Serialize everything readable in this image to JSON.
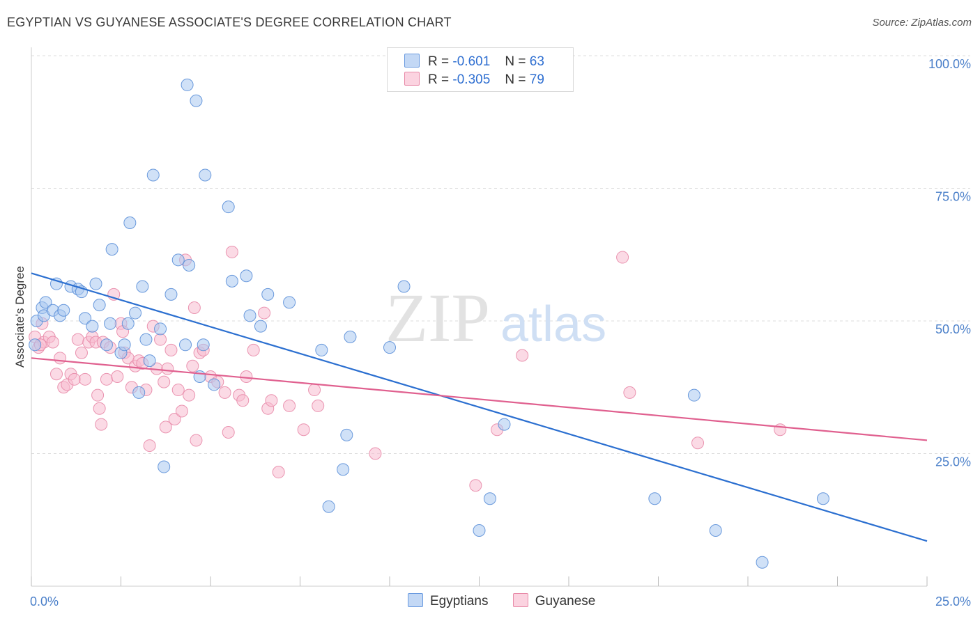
{
  "header": {
    "title": "EGYPTIAN VS GUYANESE ASSOCIATE'S DEGREE CORRELATION CHART",
    "source": "Source: ZipAtlas.com"
  },
  "watermark": {
    "zip": "ZIP",
    "atlas": "atlas"
  },
  "legend": {
    "rows": [
      {
        "r_label": "R =",
        "r_value": "-0.601",
        "n_label": "N =",
        "n_value": "63",
        "color": "#a9c8f0",
        "stroke": "#6b9be0"
      },
      {
        "r_label": "R =",
        "r_value": "-0.305",
        "n_label": "N =",
        "n_value": "79",
        "color": "#f7bcd0",
        "stroke": "#e88aa8"
      }
    ]
  },
  "bottom_legend": {
    "egyptians": "Egyptians",
    "guyanese": "Guyanese"
  },
  "chart_data": {
    "type": "scatter",
    "title": "EGYPTIAN VS GUYANESE ASSOCIATE'S DEGREE CORRELATION CHART",
    "xlabel": "",
    "ylabel": "Associate's Degree",
    "xlim": [
      0,
      25
    ],
    "ylim": [
      0,
      100
    ],
    "x_tick_labels": [
      "0.0%",
      "25.0%"
    ],
    "y_ticks": [
      25,
      50,
      75,
      100
    ],
    "y_tick_labels": [
      "25.0%",
      "50.0%",
      "75.0%",
      "100.0%"
    ],
    "grid": true,
    "series": [
      {
        "name": "Egyptians",
        "color": "#a9c8f0",
        "stroke": "#5b8fd8",
        "line_color": "#2b6fd0",
        "trend": {
          "x": [
            0,
            25
          ],
          "y": [
            59,
            8.5
          ]
        },
        "points": [
          [
            0.1,
            45.5
          ],
          [
            0.15,
            50
          ],
          [
            0.3,
            52.5
          ],
          [
            0.35,
            51
          ],
          [
            0.4,
            53.5
          ],
          [
            0.6,
            52
          ],
          [
            0.7,
            57
          ],
          [
            0.8,
            51
          ],
          [
            0.9,
            52
          ],
          [
            1.1,
            56.5
          ],
          [
            1.3,
            56
          ],
          [
            1.4,
            55.5
          ],
          [
            1.5,
            50.5
          ],
          [
            1.7,
            49
          ],
          [
            1.8,
            57
          ],
          [
            1.9,
            53
          ],
          [
            2.1,
            45.5
          ],
          [
            2.2,
            49.5
          ],
          [
            2.25,
            63.5
          ],
          [
            2.5,
            44
          ],
          [
            2.6,
            45.5
          ],
          [
            2.7,
            49.5
          ],
          [
            2.75,
            68.5
          ],
          [
            2.9,
            51.5
          ],
          [
            3.0,
            36.5
          ],
          [
            3.1,
            56.5
          ],
          [
            3.2,
            46.5
          ],
          [
            3.3,
            42.5
          ],
          [
            3.4,
            77.5
          ],
          [
            3.6,
            48.5
          ],
          [
            3.9,
            55
          ],
          [
            4.1,
            61.5
          ],
          [
            4.3,
            45.5
          ],
          [
            4.35,
            94.5
          ],
          [
            4.4,
            60.5
          ],
          [
            4.6,
            91.5
          ],
          [
            4.7,
            39.5
          ],
          [
            4.8,
            45.5
          ],
          [
            4.85,
            77.5
          ],
          [
            5.1,
            38
          ],
          [
            5.5,
            71.5
          ],
          [
            5.6,
            57.5
          ],
          [
            6.0,
            58.5
          ],
          [
            6.1,
            51
          ],
          [
            6.4,
            49
          ],
          [
            6.6,
            55
          ],
          [
            7.2,
            53.5
          ],
          [
            8.1,
            44.5
          ],
          [
            8.3,
            15
          ],
          [
            8.7,
            22
          ],
          [
            8.8,
            28.5
          ],
          [
            8.9,
            47
          ],
          [
            10.0,
            45
          ],
          [
            10.4,
            56.5
          ],
          [
            12.5,
            10.5
          ],
          [
            12.8,
            16.5
          ],
          [
            13.2,
            30.5
          ],
          [
            17.4,
            16.5
          ],
          [
            18.5,
            36
          ],
          [
            19.1,
            10.5
          ],
          [
            20.4,
            4.5
          ],
          [
            22.1,
            16.5
          ],
          [
            3.7,
            22.5
          ]
        ]
      },
      {
        "name": "Guyanese",
        "color": "#f7bcd0",
        "stroke": "#e88aa8",
        "line_color": "#e0608f",
        "trend": {
          "x": [
            0,
            25
          ],
          "y": [
            43,
            27.5
          ]
        },
        "points": [
          [
            0.1,
            47
          ],
          [
            0.2,
            45
          ],
          [
            0.3,
            49.5
          ],
          [
            0.35,
            46
          ],
          [
            0.5,
            47
          ],
          [
            0.6,
            46
          ],
          [
            0.7,
            40
          ],
          [
            0.8,
            43
          ],
          [
            0.9,
            37.5
          ],
          [
            1.0,
            38
          ],
          [
            1.1,
            40
          ],
          [
            1.2,
            39
          ],
          [
            1.3,
            46.5
          ],
          [
            1.4,
            44
          ],
          [
            1.5,
            39
          ],
          [
            1.6,
            46
          ],
          [
            1.7,
            47
          ],
          [
            1.8,
            46
          ],
          [
            1.85,
            36
          ],
          [
            1.9,
            33.5
          ],
          [
            1.95,
            30.5
          ],
          [
            2.0,
            46
          ],
          [
            2.1,
            39
          ],
          [
            2.2,
            45
          ],
          [
            2.3,
            55
          ],
          [
            2.4,
            39.5
          ],
          [
            2.5,
            49.5
          ],
          [
            2.55,
            48
          ],
          [
            2.6,
            44
          ],
          [
            2.7,
            43
          ],
          [
            2.8,
            37.5
          ],
          [
            2.9,
            41.5
          ],
          [
            3.0,
            42.5
          ],
          [
            3.1,
            42
          ],
          [
            3.2,
            37
          ],
          [
            3.3,
            26.5
          ],
          [
            3.4,
            49
          ],
          [
            3.5,
            41
          ],
          [
            3.6,
            46.5
          ],
          [
            3.7,
            38.5
          ],
          [
            3.75,
            30
          ],
          [
            3.8,
            41
          ],
          [
            3.9,
            44.5
          ],
          [
            4.0,
            31.5
          ],
          [
            4.1,
            37
          ],
          [
            4.2,
            33
          ],
          [
            4.3,
            61.5
          ],
          [
            4.4,
            36
          ],
          [
            4.5,
            41.5
          ],
          [
            4.55,
            52.5
          ],
          [
            4.6,
            27.5
          ],
          [
            4.7,
            44
          ],
          [
            4.8,
            44.5
          ],
          [
            5.0,
            39.5
          ],
          [
            5.2,
            38.5
          ],
          [
            5.4,
            36.5
          ],
          [
            5.5,
            29
          ],
          [
            5.6,
            63
          ],
          [
            5.8,
            36
          ],
          [
            5.9,
            35
          ],
          [
            6.0,
            39.5
          ],
          [
            6.2,
            44.5
          ],
          [
            6.5,
            51.5
          ],
          [
            6.6,
            33.5
          ],
          [
            6.7,
            35
          ],
          [
            6.9,
            21.5
          ],
          [
            7.2,
            34
          ],
          [
            7.6,
            29.5
          ],
          [
            7.9,
            37
          ],
          [
            8.0,
            34
          ],
          [
            9.6,
            25
          ],
          [
            12.4,
            19
          ],
          [
            13.0,
            29.5
          ],
          [
            13.7,
            43.5
          ],
          [
            16.5,
            62
          ],
          [
            16.7,
            36.5
          ],
          [
            18.6,
            27
          ],
          [
            20.9,
            29.5
          ],
          [
            0.25,
            45.5
          ]
        ]
      }
    ]
  }
}
